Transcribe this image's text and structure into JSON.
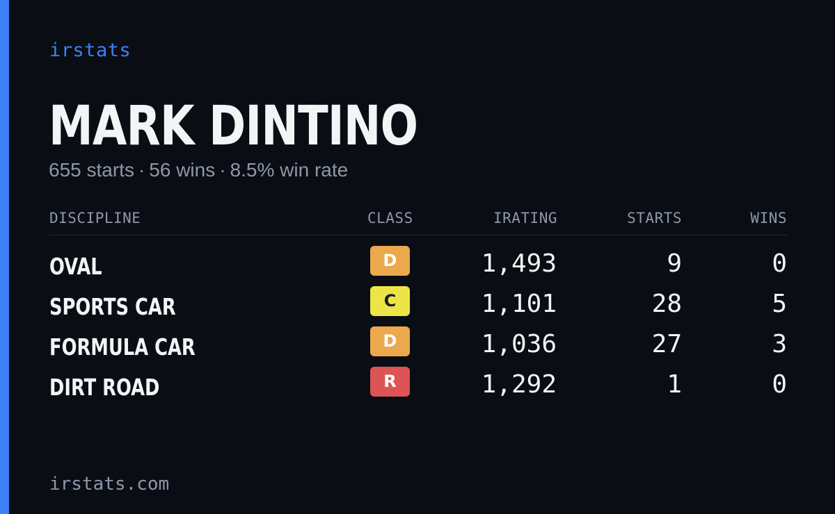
{
  "brand": "irstats",
  "driver": {
    "name": "MARK DINTINO",
    "starts_text": "655 starts",
    "wins_text": "56 wins",
    "win_rate_text": "8.5% win rate",
    "separator": "·"
  },
  "table": {
    "headers": {
      "discipline": "DISCIPLINE",
      "class": "CLASS",
      "irating": "IRATING",
      "starts": "STARTS",
      "wins": "WINS"
    },
    "rows": [
      {
        "discipline": "OVAL",
        "class": "D",
        "class_bg": "#eba84c",
        "class_fg": "#ffffff",
        "irating": "1,493",
        "starts": "9",
        "wins": "0"
      },
      {
        "discipline": "SPORTS CAR",
        "class": "C",
        "class_bg": "#ede548",
        "class_fg": "#1c1c1c",
        "irating": "1,101",
        "starts": "28",
        "wins": "5"
      },
      {
        "discipline": "FORMULA CAR",
        "class": "D",
        "class_bg": "#eba84c",
        "class_fg": "#ffffff",
        "irating": "1,036",
        "starts": "27",
        "wins": "3"
      },
      {
        "discipline": "DIRT ROAD",
        "class": "R",
        "class_bg": "#dc5454",
        "class_fg": "#ffffff",
        "irating": "1,292",
        "starts": "1",
        "wins": "0"
      }
    ]
  },
  "footer": {
    "domain": "irstats.com"
  },
  "colors": {
    "background": "#0a0d14",
    "accent": "#3b82f6",
    "text_primary": "#f3f4f6",
    "text_muted": "#8f98a8"
  }
}
